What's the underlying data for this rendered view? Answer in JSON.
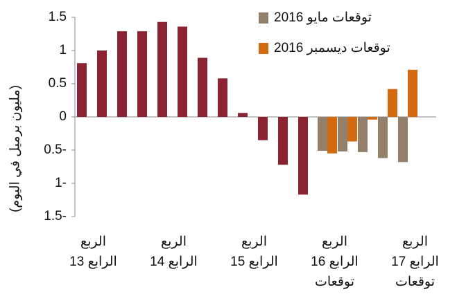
{
  "chart_data": {
    "type": "bar",
    "y_axis_label": "(مليون برميل في اليوم)",
    "categories": [
      [
        "الربع",
        "الرابع 13"
      ],
      null,
      null,
      null,
      [
        "الربع",
        "الرابع 14"
      ],
      null,
      null,
      null,
      [
        "الربع",
        "الرابع 15"
      ],
      null,
      null,
      null,
      [
        "الربع",
        "الرابع 16",
        "توقعات"
      ],
      null,
      null,
      null,
      [
        "الربع",
        "الرابع 17",
        "توقعات"
      ]
    ],
    "series": [
      {
        "color": "#8b2332",
        "values": [
          0.81,
          1.0,
          1.29,
          1.29,
          1.43,
          1.36,
          0.89,
          0.58,
          0.06,
          -0.35,
          -0.72,
          -1.17,
          null,
          null,
          null,
          null,
          null
        ]
      },
      {
        "name": "توقعات مايو 2016",
        "color": "#94806a",
        "values": [
          null,
          null,
          null,
          null,
          null,
          null,
          null,
          null,
          null,
          null,
          null,
          null,
          -0.51,
          -0.52,
          -0.53,
          -0.62,
          -0.68
        ]
      },
      {
        "name": "توقعات ديسمبر 2016",
        "color": "#d46a0f",
        "values": [
          null,
          null,
          null,
          null,
          null,
          null,
          null,
          null,
          null,
          null,
          null,
          null,
          -0.55,
          -0.37,
          -0.04,
          0.42,
          0.71
        ]
      }
    ],
    "ylim": [
      -1.5,
      1.5
    ],
    "yticks": [
      {
        "value": -1.5,
        "label": "1.5-"
      },
      {
        "value": -1,
        "label": "1-"
      },
      {
        "value": -0.5,
        "label": "0.5-"
      },
      0,
      0.5,
      1,
      1.5
    ],
    "legend": "top-right"
  }
}
